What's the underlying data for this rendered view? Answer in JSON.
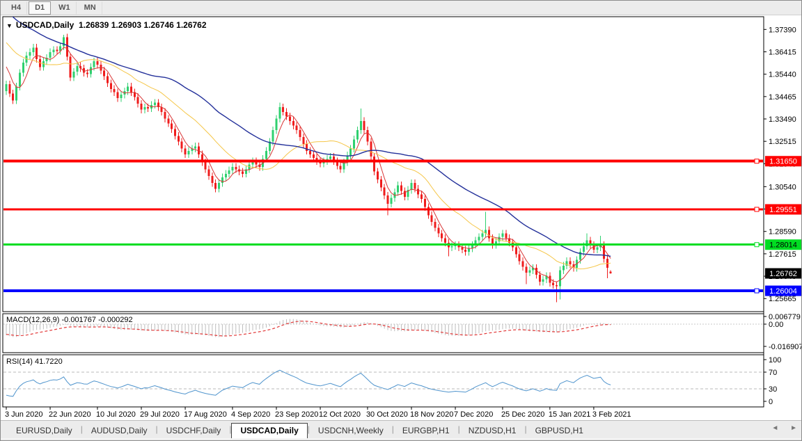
{
  "toolbar": {
    "timeframes": [
      "H4",
      "D1",
      "W1",
      "MN"
    ],
    "active_timeframe": "D1"
  },
  "chart_header": {
    "collapse_icon": "▼",
    "symbol_title": "USDCAD,Daily",
    "open": "1.26839",
    "high": "1.26903",
    "low": "1.26746",
    "close": "1.26762"
  },
  "chart_data": {
    "type": "candlestick",
    "symbol": "USDCAD",
    "timeframe": "Daily",
    "title": "USDCAD,Daily 1.26839 1.26903 1.26746 1.26762",
    "current_ohlc": {
      "open": 1.26839,
      "high": 1.26903,
      "low": 1.26746,
      "close": 1.26762
    },
    "grid": false,
    "legend_position": "none",
    "y_axis": {
      "ticks": [
        "1.37390",
        "1.36415",
        "1.35440",
        "1.34465",
        "1.33490",
        "1.32515",
        "1.31540",
        "1.30540",
        "1.29565",
        "1.28590",
        "1.27615",
        "1.26640",
        "1.25665"
      ],
      "tick_values": [
        1.3739,
        1.36415,
        1.3544,
        1.34465,
        1.3349,
        1.32515,
        1.3154,
        1.3054,
        1.29565,
        1.2859,
        1.27615,
        1.2664,
        1.25665
      ],
      "price_min": 1.251,
      "price_max": 1.3794
    },
    "x_axis": {
      "tick_labels": [
        "3 Jun 2020",
        "22 Jun 2020",
        "10 Jul 2020",
        "29 Jul 2020",
        "17 Aug 2020",
        "4 Sep 2020",
        "23 Sep 2020",
        "12 Oct 2020",
        "30 Oct 2020",
        "18 Nov 2020",
        "7 Dec 2020",
        "25 Dec 2020",
        "15 Jan 2021",
        "3 Feb 2021"
      ],
      "tick_indices": [
        0,
        13,
        27,
        40,
        53,
        67,
        80,
        93,
        107,
        120,
        133,
        147,
        161,
        174
      ]
    },
    "horizontal_lines": [
      {
        "price": 1.3165,
        "label": "1.31650",
        "color": "#ff0000",
        "thickness": 4,
        "text_color": "#ffffff"
      },
      {
        "price": 1.29551,
        "label": "1.29551",
        "color": "#ff0000",
        "thickness": 3,
        "text_color": "#ffffff"
      },
      {
        "price": 1.28014,
        "label": "1.28014",
        "color": "#00dd22",
        "thickness": 3,
        "text_color": "#000000"
      },
      {
        "price": 1.26004,
        "label": "1.26004",
        "color": "#0000ff",
        "thickness": 4,
        "text_color": "#ffffff"
      }
    ],
    "current_price_label": {
      "value": "1.26762",
      "price": 1.26762,
      "bg": "#000000",
      "text_color": "#ffffff"
    },
    "candle_colors": {
      "up": "#2fd06f",
      "down": "#ef1c1c"
    },
    "moving_averages": [
      {
        "period": 5,
        "color": "#d93636",
        "width": 1
      },
      {
        "period": 21,
        "color": "#f5c648",
        "width": 1
      },
      {
        "period": 45,
        "color": "#23309a",
        "width": 1.4
      }
    ],
    "pre_chart_closes": [
      1.414,
      1.412,
      1.4132,
      1.41,
      1.4085,
      1.4098,
      1.4066,
      1.4052,
      1.4064,
      1.4032,
      1.4018,
      1.403,
      1.3998,
      1.3984,
      1.3996,
      1.3964,
      1.395,
      1.3962,
      1.393,
      1.3916,
      1.3928,
      1.3896,
      1.3882,
      1.3894,
      1.3862,
      1.3848,
      1.386,
      1.3828,
      1.3814,
      1.3826,
      1.3794,
      1.378,
      1.3792,
      1.376,
      1.3746,
      1.3758,
      1.3726,
      1.3712,
      1.3724,
      1.3692,
      1.3678,
      1.369,
      1.3658,
      1.3644,
      1.3656,
      1.3624,
      1.361,
      1.3622,
      1.359,
      1.356
    ],
    "candles": [
      [
        1.347,
        1.3516,
        1.3454,
        1.35
      ],
      [
        1.35,
        1.3516,
        1.3444,
        1.346
      ],
      [
        1.346,
        1.3476,
        1.3414,
        1.343
      ],
      [
        1.343,
        1.3506,
        1.3414,
        1.349
      ],
      [
        1.349,
        1.3566,
        1.3474,
        1.355
      ],
      [
        1.355,
        1.3611,
        1.3534,
        1.3595
      ],
      [
        1.3595,
        1.3641,
        1.3579,
        1.3625
      ],
      [
        1.3625,
        1.3656,
        1.3609,
        1.364
      ],
      [
        1.364,
        1.3676,
        1.3624,
        1.366
      ],
      [
        1.366,
        1.3676,
        1.3594,
        1.361
      ],
      [
        1.361,
        1.3626,
        1.3559,
        1.3575
      ],
      [
        1.3575,
        1.3616,
        1.3559,
        1.36
      ],
      [
        1.36,
        1.3631,
        1.3584,
        1.3615
      ],
      [
        1.3615,
        1.3656,
        1.3599,
        1.364
      ],
      [
        1.364,
        1.3666,
        1.3624,
        1.365
      ],
      [
        1.365,
        1.3666,
        1.3629,
        1.3645
      ],
      [
        1.3645,
        1.3681,
        1.3629,
        1.3665
      ],
      [
        1.3665,
        1.3715,
        1.3649,
        1.3705
      ],
      [
        1.3705,
        1.3721,
        1.3604,
        1.362
      ],
      [
        1.362,
        1.3636,
        1.3514,
        1.353
      ],
      [
        1.353,
        1.3571,
        1.3514,
        1.3555
      ],
      [
        1.3555,
        1.3596,
        1.3539,
        1.358
      ],
      [
        1.358,
        1.3596,
        1.3554,
        1.357
      ],
      [
        1.357,
        1.3586,
        1.3534,
        1.355
      ],
      [
        1.355,
        1.3566,
        1.3529,
        1.3545
      ],
      [
        1.3545,
        1.3591,
        1.3529,
        1.3575
      ],
      [
        1.3575,
        1.3616,
        1.3559,
        1.36
      ],
      [
        1.36,
        1.3616,
        1.3569,
        1.3585
      ],
      [
        1.3585,
        1.3601,
        1.3544,
        1.356
      ],
      [
        1.356,
        1.3576,
        1.3519,
        1.3535
      ],
      [
        1.3535,
        1.3551,
        1.3489,
        1.3505
      ],
      [
        1.3505,
        1.3521,
        1.3464,
        1.348
      ],
      [
        1.348,
        1.3496,
        1.3449,
        1.3465
      ],
      [
        1.3465,
        1.3481,
        1.3424,
        1.344
      ],
      [
        1.344,
        1.3471,
        1.3424,
        1.3455
      ],
      [
        1.3455,
        1.3486,
        1.3439,
        1.347
      ],
      [
        1.347,
        1.3506,
        1.3454,
        1.349
      ],
      [
        1.349,
        1.3506,
        1.3449,
        1.3465
      ],
      [
        1.3465,
        1.3481,
        1.3429,
        1.3445
      ],
      [
        1.3445,
        1.3461,
        1.3399,
        1.3415
      ],
      [
        1.3415,
        1.3431,
        1.3374,
        1.339
      ],
      [
        1.339,
        1.3416,
        1.3374,
        1.34
      ],
      [
        1.34,
        1.3416,
        1.3379,
        1.3395
      ],
      [
        1.3395,
        1.3426,
        1.3379,
        1.341
      ],
      [
        1.341,
        1.3436,
        1.3394,
        1.342
      ],
      [
        1.342,
        1.3436,
        1.3384,
        1.34
      ],
      [
        1.34,
        1.3416,
        1.3364,
        1.338
      ],
      [
        1.338,
        1.3396,
        1.3334,
        1.335
      ],
      [
        1.335,
        1.3366,
        1.3314,
        1.333
      ],
      [
        1.333,
        1.3346,
        1.3289,
        1.3305
      ],
      [
        1.3305,
        1.3321,
        1.3259,
        1.3275
      ],
      [
        1.3275,
        1.3291,
        1.3234,
        1.325
      ],
      [
        1.325,
        1.3266,
        1.3204,
        1.322
      ],
      [
        1.322,
        1.3236,
        1.3179,
        1.3195
      ],
      [
        1.3195,
        1.3226,
        1.3179,
        1.321
      ],
      [
        1.321,
        1.3236,
        1.3194,
        1.322
      ],
      [
        1.322,
        1.3246,
        1.3204,
        1.323
      ],
      [
        1.323,
        1.3246,
        1.3179,
        1.3195
      ],
      [
        1.3195,
        1.3211,
        1.3144,
        1.316
      ],
      [
        1.316,
        1.3176,
        1.3114,
        1.313
      ],
      [
        1.313,
        1.3146,
        1.3084,
        1.31
      ],
      [
        1.31,
        1.3116,
        1.3054,
        1.307
      ],
      [
        1.307,
        1.3086,
        1.3029,
        1.3045
      ],
      [
        1.3045,
        1.3086,
        1.3029,
        1.307
      ],
      [
        1.307,
        1.3111,
        1.3054,
        1.3095
      ],
      [
        1.3095,
        1.3126,
        1.3079,
        1.311
      ],
      [
        1.311,
        1.3141,
        1.3094,
        1.3125
      ],
      [
        1.3125,
        1.3156,
        1.3109,
        1.314
      ],
      [
        1.314,
        1.3156,
        1.3114,
        1.313
      ],
      [
        1.313,
        1.3146,
        1.3104,
        1.312
      ],
      [
        1.312,
        1.3136,
        1.3094,
        1.311
      ],
      [
        1.311,
        1.3146,
        1.3094,
        1.313
      ],
      [
        1.313,
        1.3166,
        1.3114,
        1.315
      ],
      [
        1.315,
        1.3181,
        1.3134,
        1.3165
      ],
      [
        1.3165,
        1.3181,
        1.3134,
        1.315
      ],
      [
        1.315,
        1.3166,
        1.3124,
        1.314
      ],
      [
        1.314,
        1.3191,
        1.3124,
        1.3175
      ],
      [
        1.3175,
        1.3226,
        1.3159,
        1.321
      ],
      [
        1.321,
        1.3266,
        1.3194,
        1.325
      ],
      [
        1.325,
        1.3316,
        1.3234,
        1.33
      ],
      [
        1.33,
        1.3366,
        1.3284,
        1.335
      ],
      [
        1.335,
        1.342,
        1.3334,
        1.34
      ],
      [
        1.34,
        1.3416,
        1.3364,
        1.338
      ],
      [
        1.338,
        1.3396,
        1.3344,
        1.336
      ],
      [
        1.336,
        1.3376,
        1.3324,
        1.334
      ],
      [
        1.334,
        1.3356,
        1.3304,
        1.332
      ],
      [
        1.332,
        1.3336,
        1.3284,
        1.33
      ],
      [
        1.33,
        1.3316,
        1.3254,
        1.327
      ],
      [
        1.327,
        1.3286,
        1.3224,
        1.324
      ],
      [
        1.324,
        1.3256,
        1.3194,
        1.321
      ],
      [
        1.321,
        1.3226,
        1.3179,
        1.3195
      ],
      [
        1.3195,
        1.3211,
        1.3164,
        1.318
      ],
      [
        1.318,
        1.3196,
        1.3149,
        1.3165
      ],
      [
        1.3165,
        1.3181,
        1.3139,
        1.3155
      ],
      [
        1.3155,
        1.3181,
        1.3139,
        1.3165
      ],
      [
        1.3165,
        1.3191,
        1.3149,
        1.3175
      ],
      [
        1.3175,
        1.3201,
        1.3159,
        1.3185
      ],
      [
        1.3185,
        1.3201,
        1.3149,
        1.3165
      ],
      [
        1.3165,
        1.3181,
        1.3129,
        1.3145
      ],
      [
        1.3145,
        1.3161,
        1.3114,
        1.313
      ],
      [
        1.313,
        1.3176,
        1.3114,
        1.316
      ],
      [
        1.316,
        1.3206,
        1.3144,
        1.319
      ],
      [
        1.319,
        1.3236,
        1.3174,
        1.322
      ],
      [
        1.322,
        1.3276,
        1.3204,
        1.326
      ],
      [
        1.326,
        1.3316,
        1.3244,
        1.33
      ],
      [
        1.33,
        1.3395,
        1.3284,
        1.334
      ],
      [
        1.334,
        1.3356,
        1.3284,
        1.33
      ],
      [
        1.33,
        1.3316,
        1.3234,
        1.325
      ],
      [
        1.325,
        1.3266,
        1.3169,
        1.3185
      ],
      [
        1.3185,
        1.3201,
        1.3104,
        1.312
      ],
      [
        1.312,
        1.3136,
        1.3069,
        1.3085
      ],
      [
        1.3085,
        1.3101,
        1.3034,
        1.305
      ],
      [
        1.305,
        1.3066,
        1.2999,
        1.3015
      ],
      [
        1.3015,
        1.3031,
        1.293,
        1.298
      ],
      [
        1.298,
        1.3021,
        1.2964,
        1.3005
      ],
      [
        1.3005,
        1.3046,
        1.2989,
        1.303
      ],
      [
        1.303,
        1.3076,
        1.3014,
        1.306
      ],
      [
        1.306,
        1.3076,
        1.3019,
        1.3035
      ],
      [
        1.3035,
        1.3051,
        1.2994,
        1.301
      ],
      [
        1.301,
        1.3056,
        1.2994,
        1.304
      ],
      [
        1.304,
        1.3086,
        1.3024,
        1.307
      ],
      [
        1.307,
        1.3086,
        1.3029,
        1.3045
      ],
      [
        1.3045,
        1.3061,
        1.3004,
        1.302
      ],
      [
        1.302,
        1.3036,
        1.2984,
        1.3
      ],
      [
        1.3,
        1.3016,
        1.2949,
        1.2965
      ],
      [
        1.2965,
        1.2981,
        1.2914,
        1.293
      ],
      [
        1.293,
        1.2946,
        1.2884,
        1.29
      ],
      [
        1.29,
        1.2916,
        1.2859,
        1.2875
      ],
      [
        1.2875,
        1.2891,
        1.2834,
        1.285
      ],
      [
        1.285,
        1.2866,
        1.2814,
        1.283
      ],
      [
        1.283,
        1.2846,
        1.2794,
        1.281
      ],
      [
        1.281,
        1.2826,
        1.275,
        1.279
      ],
      [
        1.279,
        1.2811,
        1.2774,
        1.2795
      ],
      [
        1.2795,
        1.2816,
        1.2779,
        1.28
      ],
      [
        1.28,
        1.2816,
        1.2774,
        1.279
      ],
      [
        1.279,
        1.2806,
        1.2764,
        1.278
      ],
      [
        1.278,
        1.2796,
        1.2754,
        1.277
      ],
      [
        1.277,
        1.2801,
        1.2754,
        1.2785
      ],
      [
        1.2785,
        1.2816,
        1.2769,
        1.28
      ],
      [
        1.28,
        1.2836,
        1.2784,
        1.282
      ],
      [
        1.282,
        1.2851,
        1.2804,
        1.2835
      ],
      [
        1.2835,
        1.2866,
        1.2819,
        1.285
      ],
      [
        1.285,
        1.2945,
        1.2834,
        1.2865
      ],
      [
        1.2865,
        1.2881,
        1.2814,
        1.283
      ],
      [
        1.283,
        1.2846,
        1.2784,
        1.28
      ],
      [
        1.28,
        1.2831,
        1.2784,
        1.2815
      ],
      [
        1.2815,
        1.2851,
        1.2799,
        1.2835
      ],
      [
        1.2835,
        1.2866,
        1.2819,
        1.285
      ],
      [
        1.285,
        1.2866,
        1.2814,
        1.283
      ],
      [
        1.283,
        1.2846,
        1.2794,
        1.281
      ],
      [
        1.281,
        1.2826,
        1.2774,
        1.279
      ],
      [
        1.279,
        1.2806,
        1.2744,
        1.276
      ],
      [
        1.276,
        1.2776,
        1.2714,
        1.273
      ],
      [
        1.273,
        1.2746,
        1.2689,
        1.2705
      ],
      [
        1.2705,
        1.2721,
        1.263,
        1.268
      ],
      [
        1.268,
        1.2706,
        1.2664,
        1.269
      ],
      [
        1.269,
        1.2716,
        1.2674,
        1.27
      ],
      [
        1.27,
        1.2716,
        1.2654,
        1.267
      ],
      [
        1.267,
        1.2686,
        1.2624,
        1.264
      ],
      [
        1.264,
        1.2666,
        1.2624,
        1.265
      ],
      [
        1.265,
        1.2681,
        1.2634,
        1.2665
      ],
      [
        1.2665,
        1.2681,
        1.2619,
        1.2635
      ],
      [
        1.2635,
        1.2651,
        1.2609,
        1.2625
      ],
      [
        1.2625,
        1.2641,
        1.255,
        1.262
      ],
      [
        1.262,
        1.2706,
        1.2562,
        1.269
      ],
      [
        1.269,
        1.2726,
        1.2674,
        1.271
      ],
      [
        1.271,
        1.2746,
        1.2694,
        1.273
      ],
      [
        1.273,
        1.2746,
        1.2699,
        1.2715
      ],
      [
        1.2715,
        1.2731,
        1.2684,
        1.27
      ],
      [
        1.27,
        1.2751,
        1.2684,
        1.2735
      ],
      [
        1.2735,
        1.2786,
        1.2719,
        1.277
      ],
      [
        1.277,
        1.2811,
        1.2754,
        1.2795
      ],
      [
        1.2795,
        1.285,
        1.2779,
        1.282
      ],
      [
        1.282,
        1.2836,
        1.2784,
        1.28
      ],
      [
        1.28,
        1.2816,
        1.2764,
        1.278
      ],
      [
        1.278,
        1.2806,
        1.2764,
        1.279
      ],
      [
        1.279,
        1.284,
        1.2774,
        1.28
      ],
      [
        1.28,
        1.2816,
        1.2724,
        1.274
      ],
      [
        1.274,
        1.2756,
        1.2655,
        1.27
      ],
      [
        1.26839,
        1.26903,
        1.26746,
        1.26762
      ]
    ],
    "macd": {
      "label": "MACD(12,26,9)",
      "value_text": "-0.001767 -0.000292",
      "fast": 12,
      "slow": 26,
      "signal": 9,
      "axis_labels": [
        "0.006779",
        "0.00",
        "-0.016907"
      ],
      "axis_values": [
        0.006779,
        0,
        -0.016907
      ],
      "histogram_color": "#bdbdbd",
      "signal_color": "#e23a3a"
    },
    "rsi": {
      "label": "RSI(14)",
      "value_text": "41.7220",
      "period": 14,
      "axis_labels": [
        "100",
        "70",
        "30",
        "0"
      ],
      "axis_values": [
        100,
        70,
        30,
        0
      ],
      "levels": [
        70,
        30
      ],
      "line_color": "#4f94cd",
      "level_color": "#b8b8b8"
    }
  },
  "tabs": {
    "items": [
      {
        "label": "EURUSD,Daily",
        "active": false
      },
      {
        "label": "AUDUSD,Daily",
        "active": false
      },
      {
        "label": "USDCHF,Daily",
        "active": false
      },
      {
        "label": "USDCAD,Daily",
        "active": true
      },
      {
        "label": "USDCNH,Weekly",
        "active": false
      },
      {
        "label": "EURGBP,H1",
        "active": false
      },
      {
        "label": "NZDUSD,H1",
        "active": false
      },
      {
        "label": "GBPUSD,H1",
        "active": false
      }
    ],
    "nav_left": "◄",
    "nav_right": "►"
  }
}
